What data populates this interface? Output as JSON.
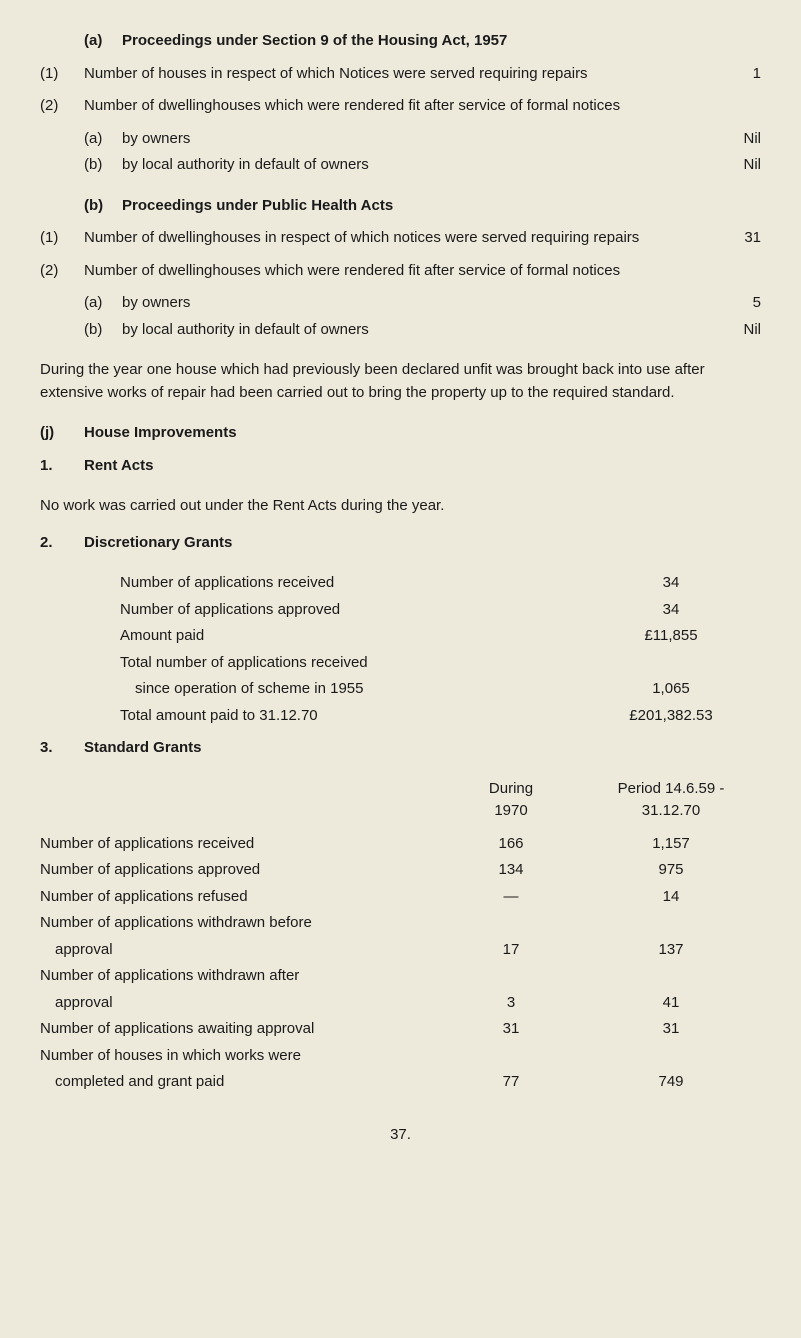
{
  "section_a": {
    "header_label": "(a)",
    "header_text": "Proceedings under Section 9 of the Housing Act, 1957",
    "items": [
      {
        "num": "(1)",
        "text": "Number of houses in respect of which Notices were served requiring repairs",
        "value": "1"
      },
      {
        "num": "(2)",
        "text": "Number of dwellinghouses which were rendered fit after service of formal notices",
        "sub": [
          {
            "letter": "(a)",
            "text": "by owners",
            "value": "Nil"
          },
          {
            "letter": "(b)",
            "text": "by local authority in default of owners",
            "value": "Nil"
          }
        ]
      }
    ]
  },
  "section_b": {
    "header_label": "(b)",
    "header_text": "Proceedings under Public Health Acts",
    "items": [
      {
        "num": "(1)",
        "text": "Number of dwellinghouses in respect of which notices were served requiring repairs",
        "value": "31"
      },
      {
        "num": "(2)",
        "text": "Number of dwellinghouses which were rendered fit after service of formal notices",
        "sub": [
          {
            "letter": "(a)",
            "text": "by owners",
            "value": "5"
          },
          {
            "letter": "(b)",
            "text": "by local authority in default of owners",
            "value": "Nil"
          }
        ]
      }
    ]
  },
  "paragraph": "During the year one house which had previously been declared unfit was brought back into use after extensive works of repair had been carried out to bring the property up to the required standard.",
  "section_j": {
    "num": "(j)",
    "title": "House Improvements"
  },
  "rent_acts": {
    "num": "1.",
    "title": "Rent Acts",
    "text": "No work was carried out under the Rent Acts during the year."
  },
  "discretionary": {
    "num": "2.",
    "title": "Discretionary Grants",
    "rows": [
      {
        "label": "Number of applications received",
        "value": "34"
      },
      {
        "label": "Number of applications approved",
        "value": "34"
      },
      {
        "label": "Amount paid",
        "value": "£11,855"
      },
      {
        "label": "Total number of applications received since operation of scheme in 1955",
        "value": "1,065",
        "wrap_at": "received"
      },
      {
        "label": "Total amount paid to 31.12.70",
        "value": "£201,382.53"
      }
    ]
  },
  "standard": {
    "num": "3.",
    "title": "Standard Grants",
    "header_col1_line1": "During",
    "header_col1_line2": "1970",
    "header_col2_line1": "Period 14.6.59 -",
    "header_col2_line2": "31.12.70",
    "rows": [
      {
        "label": "Number of applications received",
        "c1": "166",
        "c2": "1,157"
      },
      {
        "label": "Number of applications approved",
        "c1": "134",
        "c2": "975"
      },
      {
        "label": "Number of applications refused",
        "c1": "—",
        "c2": "14"
      },
      {
        "label": "Number of applications withdrawn before approval",
        "c1": "17",
        "c2": "137",
        "wrap_at": "before"
      },
      {
        "label": "Number of applications withdrawn after approval",
        "c1": "3",
        "c2": "41",
        "wrap_at": "after"
      },
      {
        "label": "Number of applications awaiting approval",
        "c1": "31",
        "c2": "31"
      },
      {
        "label": "Number of houses in which works were completed and grant paid",
        "c1": "77",
        "c2": "749",
        "wrap_at": "were"
      }
    ]
  },
  "page_number": "37."
}
